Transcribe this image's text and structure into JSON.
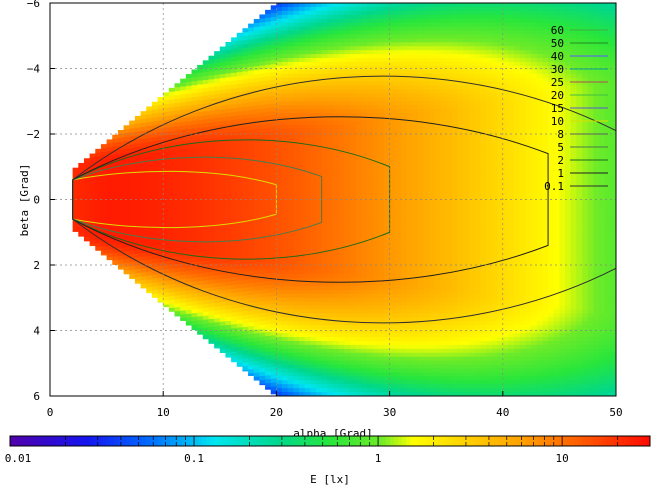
{
  "chart_data": {
    "type": "heatmap",
    "xlabel": "alpha [Grad]",
    "ylabel": "beta [Grad]",
    "xlim": [
      0,
      50
    ],
    "ylim": [
      6,
      -6
    ],
    "x_ticks": [
      0,
      10,
      20,
      30,
      40,
      50
    ],
    "y_ticks": [
      -6,
      -4,
      -2,
      0,
      2,
      4,
      6
    ],
    "grid": true,
    "legend_position": "top-right",
    "contour_levels": [
      "60",
      "50",
      "40",
      "30",
      "25",
      "20",
      "15",
      "10",
      "8",
      "5",
      "2",
      "1",
      "0.1"
    ],
    "contour_colors": [
      "#3cb043",
      "#228b22",
      "#5a5aff",
      "#00aa88",
      "#b05050",
      "#40c040",
      "#5a5ad0",
      "#dddd00",
      "#606060",
      "#4a7a4a",
      "#1a6a1a",
      "#202020",
      "#303030"
    ],
    "colorbar": {
      "label": "E [lx]",
      "scale": "log",
      "range": [
        0.01,
        30
      ],
      "tick_labels": [
        "0.01",
        "0.1",
        "1",
        "10"
      ]
    },
    "illuminance_field": {
      "peak_lx": 25,
      "peak_alpha": 5,
      "source_alpha": 2,
      "beam_half_width_beta": [
        {
          "alpha": 2,
          "beta": 0.9
        },
        {
          "alpha": 10,
          "beta": 3.2
        },
        {
          "alpha": 20,
          "beta": 6.0
        },
        {
          "alpha": 50,
          "beta": 6.0
        }
      ],
      "contour_extent": [
        {
          "level": "10",
          "alpha_max": 20,
          "beta_half": 0.9
        },
        {
          "level": "5",
          "alpha_max": 24,
          "beta_half": 1.4
        },
        {
          "level": "2",
          "alpha_max": 30,
          "beta_half": 2.0
        },
        {
          "level": "1",
          "alpha_max": 44,
          "beta_half": 2.8
        },
        {
          "level": "0.1",
          "alpha_max": 50,
          "beta_half": 4.2
        }
      ]
    }
  }
}
